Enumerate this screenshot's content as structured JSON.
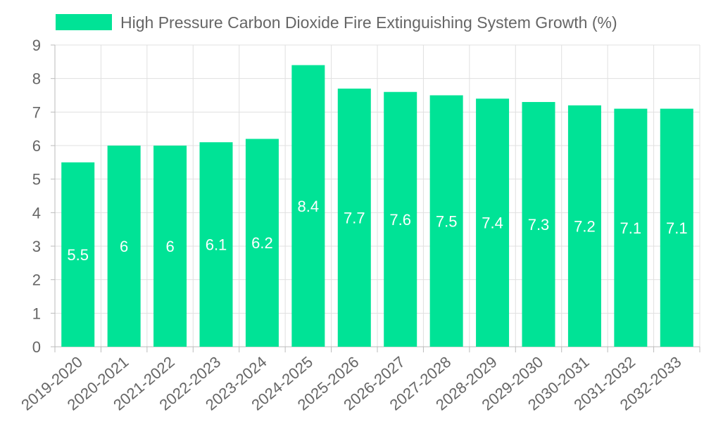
{
  "chart_data": {
    "type": "bar",
    "title": "",
    "xlabel": "",
    "ylabel": "",
    "categories": [
      "2019-2020",
      "2020-2021",
      "2021-2022",
      "2022-2023",
      "2023-2024",
      "2024-2025",
      "2025-2026",
      "2026-2027",
      "2027-2028",
      "2028-2029",
      "2029-2030",
      "2030-2031",
      "2031-2032",
      "2032-2033"
    ],
    "series": [
      {
        "name": "High Pressure Carbon Dioxide Fire Extinguishing System Growth (%)",
        "values": [
          5.5,
          6,
          6,
          6.1,
          6.2,
          8.4,
          7.7,
          7.6,
          7.5,
          7.4,
          7.3,
          7.2,
          7.1,
          7.1
        ],
        "color": "#00e396"
      }
    ],
    "ylim": [
      0,
      9
    ],
    "yticks": [
      0,
      1,
      2,
      3,
      4,
      5,
      6,
      7,
      8,
      9
    ],
    "grid": true,
    "legend_position": "top",
    "data_labels": true
  },
  "colors": {
    "bar": "#00e396",
    "grid": "#e0e0e0",
    "axis": "#bbbbbb",
    "text": "#666666",
    "data_label": "#ffffff"
  }
}
